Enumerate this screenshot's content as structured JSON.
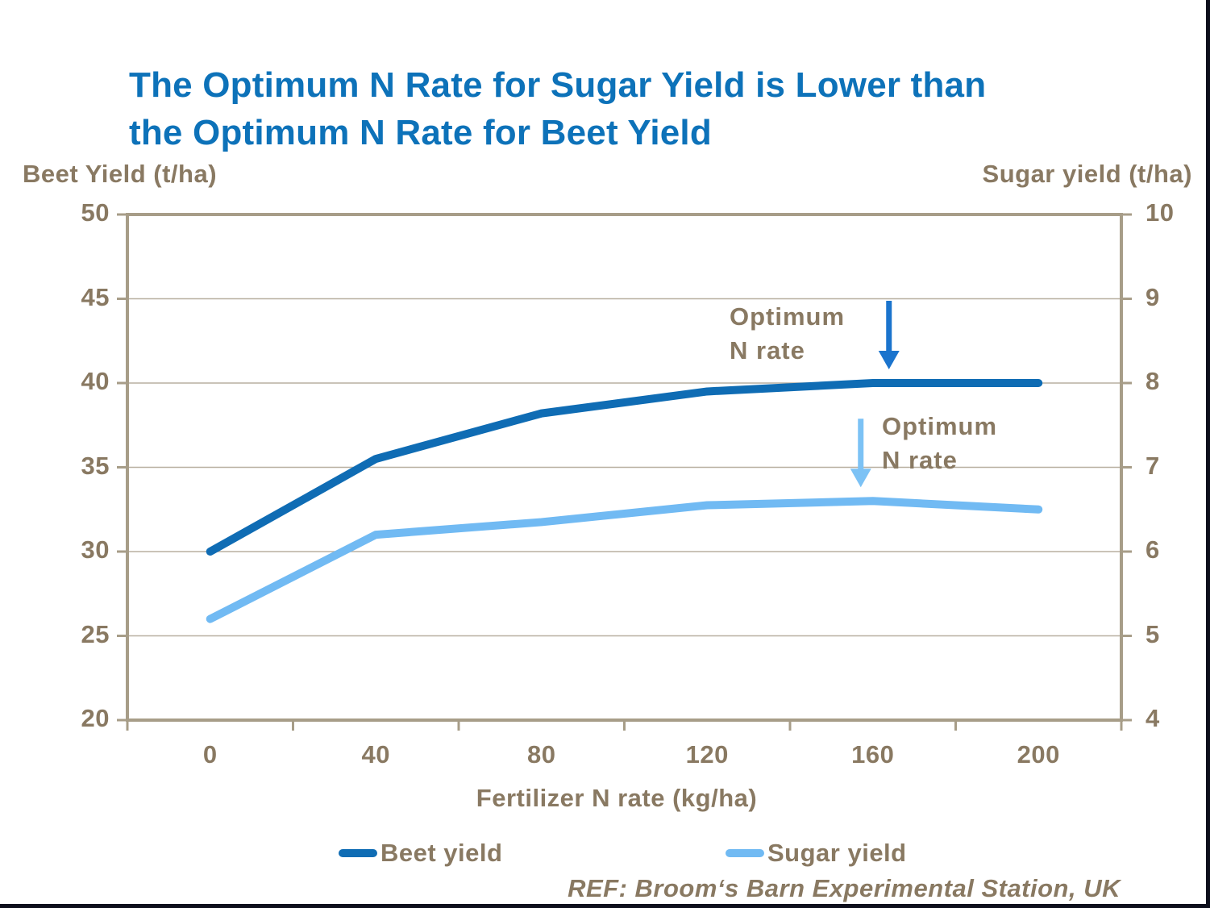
{
  "slide": {
    "title_line1": "The Optimum N Rate for Sugar Yield is Lower than",
    "title_line2": "the Optimum N Rate for Beet Yield",
    "footer": "REF: Broom‘s Barn Experimental Station, UK"
  },
  "colors": {
    "title_blue": "#0d72b9",
    "label_brown": "#897962",
    "gridline": "#b8afa0",
    "axis_border": "#a79d88",
    "beet_line": "#0f6cb4",
    "sugar_line": "#71baf3",
    "beet_arrow": "#1b74cd",
    "sugar_arrow": "#7cc2f5",
    "slide_edge": "#0d0f1c"
  },
  "chart_data": {
    "type": "line",
    "title": "The Optimum N Rate for Sugar Yield is Lower than the Optimum N Rate for Beet Yield",
    "categories": [
      0,
      40,
      80,
      120,
      160,
      200
    ],
    "x_axis_label": "Fertilizer N rate (kg/ha)",
    "left_axis": {
      "label": "Beet Yield (t/ha)",
      "range": [
        20,
        50
      ],
      "ticks": [
        50,
        45,
        40,
        35,
        30,
        25,
        20
      ]
    },
    "right_axis": {
      "label": "Sugar yield (t/ha)",
      "range": [
        4,
        10
      ],
      "ticks": [
        10,
        9,
        8,
        7,
        6,
        5,
        4
      ]
    },
    "grid": true,
    "legend_position": "bottom",
    "series": [
      {
        "name": "Beet yield",
        "axis": "left",
        "color": "#0f6cb4",
        "values": [
          30.0,
          35.5,
          38.2,
          39.5,
          40.0,
          40.0
        ]
      },
      {
        "name": "Sugar yield",
        "axis": "right",
        "color": "#71baf3",
        "values": [
          5.2,
          6.2,
          6.35,
          6.55,
          6.6,
          6.5
        ]
      }
    ],
    "annotations": [
      {
        "line1": "Optimum",
        "line2": "N rate",
        "series": "Beet yield",
        "at_x": 160,
        "arrow_color": "#1b74cd"
      },
      {
        "line1": "Optimum",
        "line2": "N rate",
        "series": "Sugar yield",
        "at_x": 160,
        "arrow_color": "#7cc2f5"
      }
    ]
  }
}
